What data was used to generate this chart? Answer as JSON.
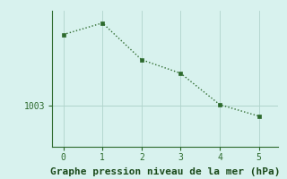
{
  "x": [
    0,
    1,
    2,
    3,
    4,
    5
  ],
  "y": [
    1013.5,
    1015.2,
    1009.8,
    1007.8,
    1003.2,
    1001.5
  ],
  "xlabel": "Graphe pression niveau de la mer (hPa)",
  "ytick_values": [
    1003
  ],
  "xlim": [
    -0.3,
    5.5
  ],
  "ylim": [
    997,
    1017
  ],
  "line_color": "#2d6a2d",
  "bg_color": "#d8f2ee",
  "grid_color": "#b0d4cc",
  "xlabel_color": "#1a4a1a",
  "xlabel_fontsize": 8,
  "marker": "s",
  "markersize": 3,
  "linewidth": 1.0,
  "linestyle": ":"
}
